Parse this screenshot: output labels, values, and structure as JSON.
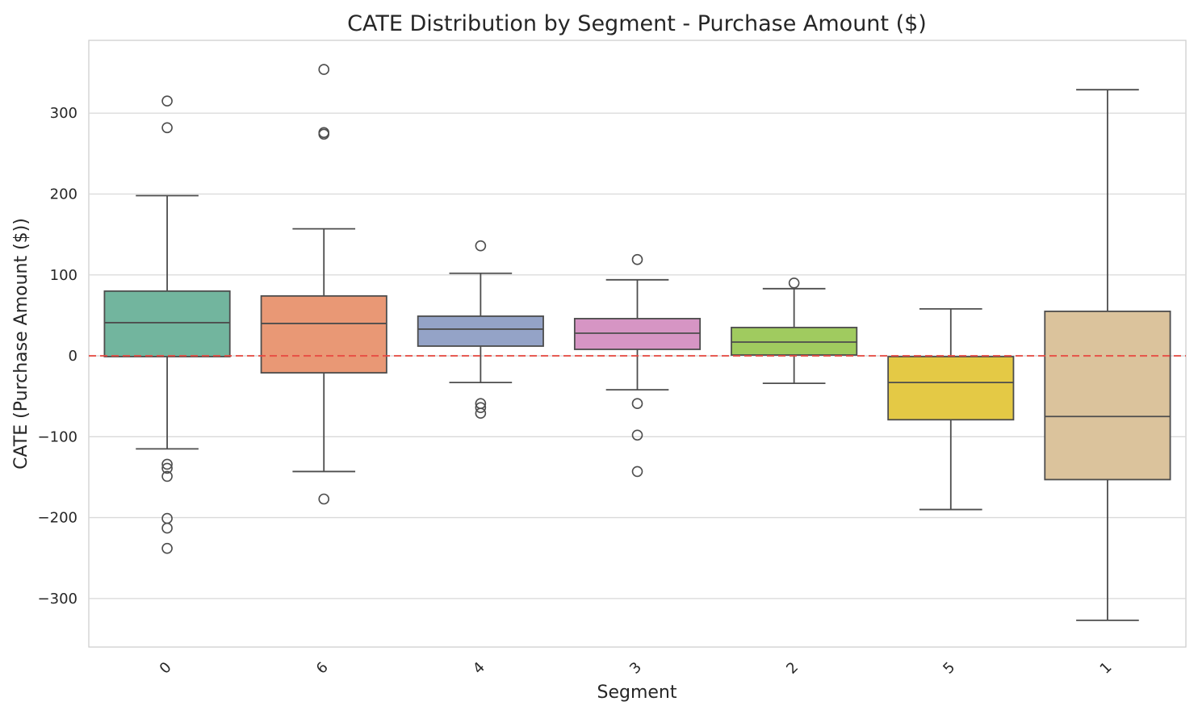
{
  "chart_data": {
    "type": "box",
    "title": "CATE Distribution by Segment - Purchase Amount ($)",
    "xlabel": "Segment",
    "ylabel": "CATE (Purchase Amount ($))",
    "ylim": [
      -360,
      390
    ],
    "yticks": [
      300,
      200,
      100,
      0,
      -100,
      -200,
      -300
    ],
    "ytick_labels": [
      "300",
      "200",
      "100",
      "0",
      "−100",
      "−200",
      "−300"
    ],
    "grid": true,
    "legend": "none",
    "reference_line": {
      "y": 0,
      "color": "#e8473f",
      "style": "dashed"
    },
    "categories": [
      "0",
      "6",
      "4",
      "3",
      "2",
      "5",
      "1"
    ],
    "boxes": [
      {
        "category": "0",
        "color": "#72b59e",
        "whisker_low": -115,
        "q1": -1,
        "median": 41,
        "q3": 80,
        "whisker_high": 198,
        "outliers": [
          315,
          282,
          -134,
          -139,
          -149,
          -201,
          -213,
          -238
        ]
      },
      {
        "category": "6",
        "color": "#e99875",
        "whisker_low": -143,
        "q1": -21,
        "median": 40,
        "q3": 74,
        "whisker_high": 157,
        "outliers": [
          354,
          276,
          274,
          -177
        ]
      },
      {
        "category": "4",
        "color": "#94a3c7",
        "whisker_low": -33,
        "q1": 12,
        "median": 33,
        "q3": 49,
        "whisker_high": 102,
        "outliers": [
          136,
          -59,
          -64,
          -71
        ]
      },
      {
        "category": "3",
        "color": "#d695c4",
        "whisker_low": -42,
        "q1": 8,
        "median": 28,
        "q3": 46,
        "whisker_high": 94,
        "outliers": [
          119,
          -59,
          -98,
          -143
        ]
      },
      {
        "category": "2",
        "color": "#a0cb5f",
        "whisker_low": -34,
        "q1": 1,
        "median": 17,
        "q3": 35,
        "whisker_high": 83,
        "outliers": [
          90
        ]
      },
      {
        "category": "5",
        "color": "#e4c945",
        "whisker_low": -190,
        "q1": -79,
        "median": -33,
        "q3": -1,
        "whisker_high": 58,
        "outliers": []
      },
      {
        "category": "1",
        "color": "#dbc39c",
        "whisker_low": -327,
        "q1": -153,
        "median": -75,
        "q3": 55,
        "whisker_high": 329,
        "outliers": []
      }
    ]
  }
}
